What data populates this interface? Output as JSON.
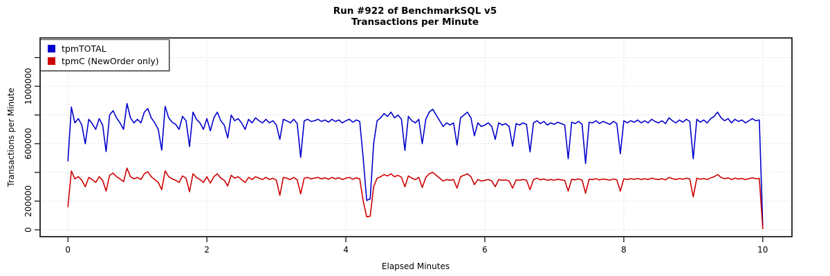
{
  "chart_data": {
    "type": "line",
    "title_line1": "Run #922 of BenchmarkSQL v5",
    "title_line2": "Transactions per Minute",
    "xlabel": "Elapsed Minutes",
    "ylabel": "Transactions per Minute",
    "xlim": [
      -0.4,
      10.42
    ],
    "ylim": [
      -48000,
      1337000
    ],
    "grid": "dotted",
    "grid_color": "#c9c9c9",
    "box_color": "#000000",
    "legend_position": "top-left",
    "x_ticks": [
      {
        "v": 0,
        "label": "0"
      },
      {
        "v": 2,
        "label": "2"
      },
      {
        "v": 4,
        "label": "4"
      },
      {
        "v": 6,
        "label": "6"
      },
      {
        "v": 8,
        "label": "8"
      },
      {
        "v": 10,
        "label": "10"
      }
    ],
    "y_ticks": [
      {
        "v": 0,
        "label": "0"
      },
      {
        "v": 200000,
        "label": "200000"
      },
      {
        "v": 400000,
        "label": ""
      },
      {
        "v": 600000,
        "label": "600000"
      },
      {
        "v": 800000,
        "label": ""
      },
      {
        "v": 1000000,
        "label": "1000000"
      },
      {
        "v": 1200000,
        "label": ""
      }
    ],
    "x_start": 0,
    "x_step": 0.05,
    "y_value_multiplier": 1000,
    "series": [
      {
        "name": "tpmTOTAL",
        "color": "#0000CD",
        "values": [
          480,
          855,
          745,
          775,
          730,
          600,
          770,
          740,
          700,
          775,
          730,
          545,
          800,
          830,
          780,
          745,
          700,
          880,
          780,
          745,
          770,
          745,
          820,
          845,
          780,
          745,
          700,
          555,
          860,
          780,
          750,
          735,
          700,
          790,
          760,
          580,
          820,
          770,
          745,
          700,
          775,
          690,
          780,
          820,
          760,
          730,
          640,
          800,
          760,
          775,
          745,
          700,
          770,
          745,
          780,
          760,
          745,
          770,
          745,
          760,
          730,
          630,
          770,
          760,
          745,
          770,
          740,
          505,
          760,
          770,
          755,
          760,
          770,
          755,
          765,
          750,
          770,
          755,
          765,
          745,
          760,
          770,
          750,
          765,
          755,
          500,
          205,
          215,
          600,
          760,
          780,
          810,
          790,
          820,
          780,
          800,
          770,
          553,
          790,
          760,
          745,
          770,
          600,
          770,
          820,
          840,
          800,
          760,
          720,
          745,
          730,
          745,
          590,
          780,
          800,
          820,
          780,
          655,
          745,
          720,
          730,
          745,
          720,
          630,
          745,
          730,
          740,
          720,
          582,
          740,
          730,
          745,
          735,
          543,
          745,
          760,
          740,
          755,
          730,
          745,
          735,
          750,
          740,
          730,
          495,
          750,
          740,
          755,
          735,
          462,
          750,
          745,
          760,
          740,
          755,
          745,
          735,
          755,
          740,
          530,
          760,
          745,
          760,
          750,
          765,
          745,
          760,
          745,
          770,
          755,
          745,
          760,
          740,
          780,
          760,
          745,
          765,
          750,
          770,
          755,
          495,
          770,
          750,
          765,
          745,
          775,
          790,
          820,
          780,
          760,
          775,
          745,
          770,
          755,
          765,
          745,
          760,
          775,
          760,
          765,
          25
        ]
      },
      {
        "name": "tpmC (NewOrder only)",
        "color": "#CD0000",
        "values": [
          160,
          410,
          355,
          370,
          345,
          300,
          365,
          350,
          330,
          370,
          345,
          270,
          380,
          395,
          370,
          355,
          335,
          430,
          370,
          355,
          365,
          350,
          390,
          405,
          370,
          350,
          330,
          280,
          410,
          370,
          355,
          345,
          330,
          375,
          360,
          265,
          390,
          365,
          350,
          330,
          370,
          325,
          370,
          390,
          360,
          345,
          305,
          380,
          360,
          370,
          350,
          330,
          365,
          350,
          370,
          360,
          350,
          365,
          350,
          360,
          345,
          240,
          365,
          360,
          350,
          365,
          348,
          250,
          360,
          365,
          355,
          360,
          365,
          355,
          362,
          352,
          365,
          355,
          362,
          350,
          360,
          365,
          352,
          362,
          355,
          200,
          90,
          95,
          300,
          360,
          370,
          385,
          375,
          390,
          370,
          380,
          365,
          300,
          375,
          360,
          350,
          365,
          295,
          365,
          390,
          400,
          380,
          360,
          340,
          350,
          345,
          350,
          290,
          370,
          380,
          390,
          370,
          315,
          350,
          340,
          345,
          350,
          340,
          300,
          350,
          345,
          348,
          340,
          290,
          348,
          345,
          350,
          346,
          280,
          350,
          360,
          348,
          355,
          345,
          350,
          346,
          352,
          348,
          344,
          270,
          352,
          348,
          355,
          346,
          255,
          352,
          350,
          356,
          347,
          354,
          350,
          346,
          354,
          348,
          270,
          356,
          350,
          356,
          352,
          358,
          350,
          356,
          350,
          360,
          354,
          350,
          356,
          348,
          365,
          356,
          350,
          358,
          352,
          360,
          354,
          230,
          360,
          352,
          358,
          350,
          362,
          370,
          385,
          365,
          356,
          362,
          350,
          360,
          354,
          358,
          350,
          356,
          362,
          356,
          358,
          8
        ]
      }
    ]
  }
}
